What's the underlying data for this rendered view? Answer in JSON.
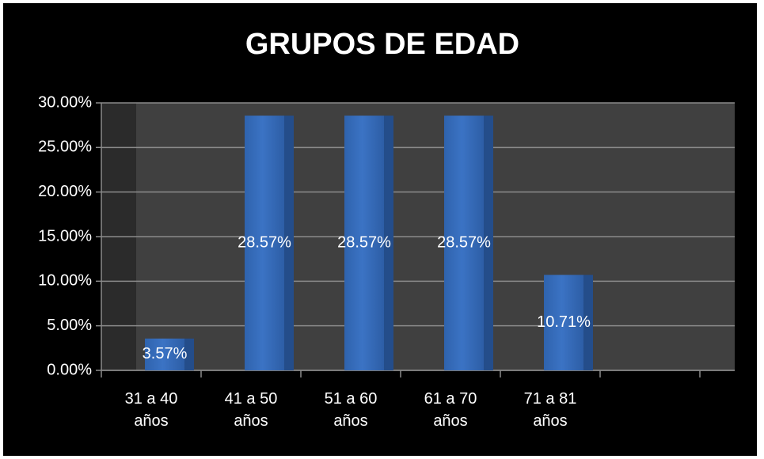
{
  "chart_data": {
    "type": "bar",
    "title": "GRUPOS DE EDAD",
    "categories": [
      "31 a 40 años",
      "41 a 50 años",
      "51 a 60 años",
      "61 a 70 años",
      "71 a 81 años",
      null
    ],
    "values": [
      3.57,
      28.57,
      28.57,
      28.57,
      10.71,
      null
    ],
    "value_labels": [
      "3.57%",
      "28.57%",
      "28.57%",
      "28.57%",
      "10.71%",
      null
    ],
    "color": "#3b73c4",
    "ylim": [
      0,
      30
    ],
    "yticks": [
      {
        "value": 0,
        "label": "0.00%"
      },
      {
        "value": 5,
        "label": "5.00%"
      },
      {
        "value": 10,
        "label": "10.00%"
      },
      {
        "value": 15,
        "label": "15.00%"
      },
      {
        "value": 20,
        "label": "20.00%"
      },
      {
        "value": 25,
        "label": "25.00%"
      },
      {
        "value": 30,
        "label": "30.00%"
      }
    ],
    "grid": true
  }
}
